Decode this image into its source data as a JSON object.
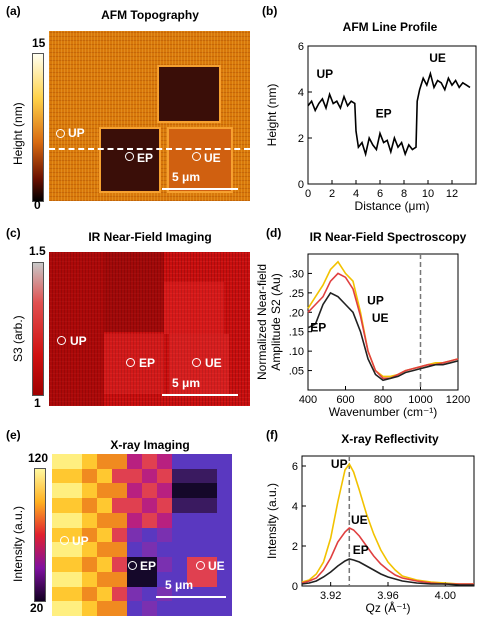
{
  "panels": {
    "a": {
      "label": "(a)",
      "title": "AFM Topography",
      "cb_top": "15",
      "cb_bottom": "0",
      "cb_label": "Height (nm)",
      "scale": "5 μm"
    },
    "b": {
      "label": "(b)",
      "title": "AFM Line Profile"
    },
    "c": {
      "label": "(c)",
      "title": "IR Near-Field Imaging",
      "cb_top": "1.5",
      "cb_bottom": "1",
      "cb_label": "S3 (arb.)",
      "scale": "5 μm"
    },
    "d": {
      "label": "(d)",
      "title": "IR Near-Field Spectroscopy"
    },
    "e": {
      "label": "(e)",
      "title": "X-ray Imaging",
      "cb_top": "120",
      "cb_bottom": "20",
      "cb_label": "Intensity (a.u.)",
      "scale": "5 μm"
    },
    "f": {
      "label": "(f)",
      "title": "X-ray Reflectivity"
    }
  },
  "markers": {
    "up": "UP",
    "ep": "EP",
    "ue": "UE"
  },
  "colors": {
    "up": "#f2c200",
    "ue": "#e04040",
    "ep": "#222222",
    "red_mid": "#e02020",
    "orange": "#ee7700"
  },
  "chart_data": [
    {
      "panel": "b",
      "type": "line",
      "title": "AFM Line Profile",
      "xlabel": "Distance (μm)",
      "ylabel": "Height (nm)",
      "xlim": [
        0,
        14
      ],
      "ylim": [
        0,
        6
      ],
      "xticks": [
        0,
        2,
        4,
        6,
        8,
        10,
        12
      ],
      "yticks": [
        0,
        2,
        4,
        6
      ],
      "annotations": [
        {
          "text": "UP",
          "x": 1.4,
          "y": 4.6
        },
        {
          "text": "EP",
          "x": 6.3,
          "y": 2.9
        },
        {
          "text": "UE",
          "x": 10.8,
          "y": 5.3
        }
      ],
      "series": [
        {
          "x": [
            0,
            0.3,
            0.6,
            0.9,
            1.2,
            1.5,
            1.8,
            2.1,
            2.4,
            2.7,
            3.0,
            3.3,
            3.6,
            3.9,
            4.0,
            4.2,
            4.5,
            4.8,
            5.1,
            5.4,
            5.7,
            6.0,
            6.3,
            6.6,
            6.9,
            7.2,
            7.5,
            7.8,
            8.1,
            8.4,
            8.7,
            9.0,
            9.1,
            9.3,
            9.6,
            9.9,
            10.2,
            10.5,
            10.8,
            11.1,
            11.4,
            11.7,
            12.0,
            12.3,
            12.6,
            12.9,
            13.2,
            13.5
          ],
          "y": [
            3.4,
            3.6,
            3.2,
            3.5,
            3.7,
            3.3,
            3.9,
            3.5,
            3.6,
            3.3,
            3.8,
            3.4,
            3.6,
            3.5,
            2.3,
            1.6,
            1.8,
            1.3,
            2.0,
            1.7,
            1.5,
            2.2,
            1.8,
            1.9,
            1.4,
            2.0,
            1.6,
            1.8,
            1.3,
            1.7,
            1.5,
            1.6,
            3.6,
            4.1,
            4.6,
            4.3,
            4.8,
            4.2,
            4.5,
            4.4,
            4.1,
            4.6,
            4.3,
            4.5,
            4.2,
            4.4,
            4.3,
            4.2
          ]
        }
      ]
    },
    {
      "panel": "d",
      "type": "line",
      "title": "IR Near-Field Spectroscopy",
      "xlabel": "Wavenumber (cm⁻¹)",
      "ylabel": "Normalized Near-field Amplitude S2 (Au)",
      "xlim": [
        400,
        1200
      ],
      "ylim": [
        0,
        0.35
      ],
      "xticks": [
        400,
        600,
        800,
        1000,
        1200
      ],
      "yticks": [
        0.05,
        0.1,
        0.15,
        0.2,
        0.25,
        0.3
      ],
      "vline": 1000,
      "annotations": [
        {
          "text": "UP",
          "x": 760,
          "y": 0.22
        },
        {
          "text": "UE",
          "x": 785,
          "y": 0.175
        },
        {
          "text": "EP",
          "x": 455,
          "y": 0.15
        }
      ],
      "series": [
        {
          "name": "UP",
          "x": [
            400,
            440,
            480,
            520,
            560,
            600,
            640,
            680,
            720,
            760,
            800,
            840,
            880,
            920,
            960,
            1000,
            1040,
            1080,
            1120,
            1160,
            1200
          ],
          "y": [
            0.21,
            0.24,
            0.27,
            0.31,
            0.33,
            0.3,
            0.28,
            0.2,
            0.1,
            0.05,
            0.035,
            0.035,
            0.04,
            0.05,
            0.055,
            0.06,
            0.065,
            0.07,
            0.07,
            0.075,
            0.08
          ]
        },
        {
          "name": "UE",
          "x": [
            400,
            440,
            480,
            520,
            560,
            600,
            640,
            680,
            720,
            760,
            800,
            840,
            880,
            920,
            960,
            1000,
            1040,
            1080,
            1120,
            1160,
            1200
          ],
          "y": [
            0.2,
            0.22,
            0.24,
            0.28,
            0.3,
            0.29,
            0.26,
            0.19,
            0.1,
            0.05,
            0.03,
            0.03,
            0.04,
            0.05,
            0.055,
            0.06,
            0.065,
            0.065,
            0.07,
            0.075,
            0.08
          ]
        },
        {
          "name": "EP",
          "x": [
            400,
            440,
            480,
            520,
            560,
            600,
            640,
            680,
            720,
            760,
            800,
            840,
            880,
            920,
            960,
            1000,
            1040,
            1080,
            1120,
            1160,
            1200
          ],
          "y": [
            0.16,
            0.17,
            0.22,
            0.25,
            0.24,
            0.22,
            0.2,
            0.15,
            0.08,
            0.04,
            0.025,
            0.03,
            0.035,
            0.045,
            0.05,
            0.055,
            0.06,
            0.065,
            0.065,
            0.07,
            0.075
          ]
        }
      ]
    },
    {
      "panel": "f",
      "type": "line",
      "title": "X-ray Reflectivity",
      "xlabel": "Qz (Å⁻¹)",
      "ylabel": "Intensity (a.u.)",
      "xlim": [
        3.9,
        4.02
      ],
      "ylim": [
        0,
        6.5
      ],
      "xticks": [
        3.92,
        3.96,
        4.0
      ],
      "yticks": [
        0,
        2,
        4,
        6
      ],
      "vline": 3.933,
      "annotations": [
        {
          "text": "UP",
          "x": 3.926,
          "y": 5.9
        },
        {
          "text": "UE",
          "x": 3.94,
          "y": 3.1
        },
        {
          "text": "EP",
          "x": 3.941,
          "y": 1.6
        }
      ],
      "series": [
        {
          "name": "UP",
          "x": [
            3.9,
            3.905,
            3.91,
            3.915,
            3.92,
            3.925,
            3.93,
            3.933,
            3.936,
            3.94,
            3.945,
            3.95,
            3.955,
            3.96,
            3.965,
            3.97,
            3.98,
            3.99,
            4.0,
            4.01,
            4.02
          ],
          "y": [
            0.2,
            0.3,
            0.6,
            1.2,
            2.4,
            4.2,
            5.8,
            6.1,
            5.7,
            4.8,
            3.6,
            2.6,
            1.8,
            1.2,
            0.8,
            0.5,
            0.3,
            0.2,
            0.15,
            0.1,
            0.1
          ]
        },
        {
          "name": "UE",
          "x": [
            3.9,
            3.905,
            3.91,
            3.915,
            3.92,
            3.925,
            3.93,
            3.933,
            3.936,
            3.94,
            3.945,
            3.95,
            3.955,
            3.96,
            3.965,
            3.97,
            3.98,
            3.99,
            4.0,
            4.01,
            4.02
          ],
          "y": [
            0.15,
            0.25,
            0.4,
            0.8,
            1.4,
            2.2,
            2.7,
            2.9,
            2.8,
            2.5,
            2.0,
            1.5,
            1.1,
            0.8,
            0.55,
            0.4,
            0.25,
            0.15,
            0.1,
            0.1,
            0.1
          ]
        },
        {
          "name": "EP",
          "x": [
            3.9,
            3.905,
            3.91,
            3.915,
            3.92,
            3.925,
            3.93,
            3.933,
            3.936,
            3.94,
            3.945,
            3.95,
            3.955,
            3.96,
            3.965,
            3.97,
            3.98,
            3.99,
            4.0,
            4.01,
            4.02
          ],
          "y": [
            0.1,
            0.15,
            0.25,
            0.45,
            0.7,
            1.0,
            1.25,
            1.35,
            1.3,
            1.2,
            1.0,
            0.8,
            0.6,
            0.45,
            0.35,
            0.25,
            0.15,
            0.1,
            0.1,
            0.05,
            0.05
          ]
        }
      ]
    }
  ]
}
